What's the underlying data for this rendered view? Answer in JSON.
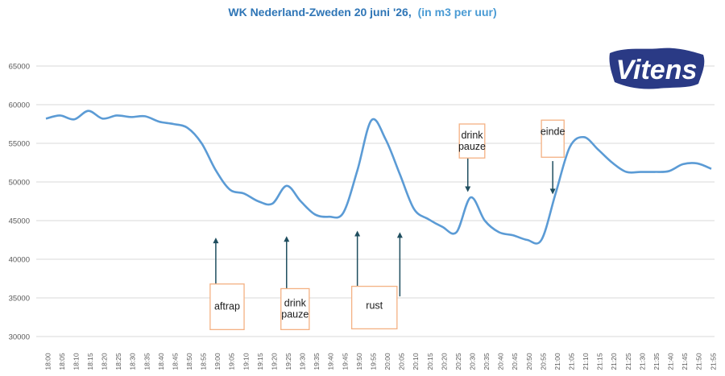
{
  "chart_data": {
    "type": "line",
    "title": "WK Nederland-Zweden 20 juni '26,",
    "subtitle": "(in m3 per uur)",
    "xlabel": "",
    "ylabel": "",
    "ylim": [
      30000,
      65000
    ],
    "yticks": [
      "30000",
      "35000",
      "40000",
      "45000",
      "50000",
      "55000",
      "60000",
      "65000"
    ],
    "grid": true,
    "legend": "none",
    "x": [
      "18:00",
      "18:05",
      "18:10",
      "18:15",
      "18:20",
      "18:25",
      "18:30",
      "18:35",
      "18:40",
      "18:45",
      "18:50",
      "18:55",
      "19:00",
      "19:05",
      "19:10",
      "19:15",
      "19:20",
      "19:25",
      "19:30",
      "19:35",
      "19:40",
      "19:45",
      "19:50",
      "19:55",
      "20:00",
      "20:05",
      "20:10",
      "20:15",
      "20:20",
      "20:25",
      "20:30",
      "20:35",
      "20:40",
      "20:45",
      "20:50",
      "20:55",
      "21:00",
      "21:05",
      "21:10",
      "21:15",
      "21:20",
      "21:25",
      "21:30",
      "21:35",
      "21:40",
      "21:45",
      "21:50",
      "21:55"
    ],
    "series": [
      {
        "color": "#5b9bd5",
        "values": [
          58200,
          58600,
          58100,
          59200,
          58200,
          58600,
          58400,
          58500,
          57800,
          57500,
          57000,
          55000,
          51500,
          49000,
          48500,
          47500,
          47200,
          49500,
          47500,
          45800,
          45500,
          46000,
          51500,
          58000,
          55500,
          51000,
          46500,
          45200,
          44200,
          43500,
          48000,
          45000,
          43500,
          43100,
          42500,
          42500,
          48500,
          54500,
          55800,
          54200,
          52500,
          51300,
          51300,
          51300,
          51400,
          52300,
          52400,
          51700
        ]
      }
    ],
    "annotations": [
      {
        "lines": [
          "aftrap"
        ],
        "at": "19:00",
        "value": 42800,
        "direction": "up",
        "box_top": 36800,
        "box_bottom": 30900,
        "box_from": "18:58",
        "box_to": "19:10",
        "text_value": 33900
      },
      {
        "lines": [
          "drink",
          "pauze"
        ],
        "at": "19:25",
        "value": 43000,
        "direction": "up",
        "box_top": 36200,
        "box_bottom": 30900,
        "box_from": "19:23",
        "box_to": "19:33",
        "text_value": 33600
      },
      {
        "lines": [
          "rust"
        ],
        "at": "19:50",
        "value": 43700,
        "direction": "up",
        "box_top": 36500,
        "box_bottom": 31000,
        "box_from": "19:48",
        "box_to": "20:04",
        "text_value": 34000
      },
      {
        "lines": [],
        "at": "20:05",
        "value": 43500,
        "direction": "up",
        "from_value": 35200
      },
      {
        "lines": [
          "drink",
          "pauze"
        ],
        "at": "20:29",
        "value": 48700,
        "direction": "down",
        "box_top": 57500,
        "box_bottom": 53100,
        "box_from": "20:26",
        "box_to": "20:35",
        "text_value": 55300,
        "from_value": 53100
      },
      {
        "lines": [
          "einde"
        ],
        "at": "20:59",
        "value": 48400,
        "direction": "down",
        "box_top": 58000,
        "box_bottom": 53200,
        "box_from": "20:55",
        "box_to": "21:03",
        "text_value": 56500,
        "from_value": 52700
      }
    ]
  },
  "logo": {
    "text": "Vitens",
    "text_color": "#ffffff",
    "shape_color": "#2a3a85",
    "icon": "vitens-logo"
  },
  "colors": {
    "title": "#2e75b6",
    "subtitle": "#4a9bd4",
    "grid": "#d9d9d9",
    "annotation_box": "#f4b183",
    "arrow": "#1f4e5f"
  }
}
